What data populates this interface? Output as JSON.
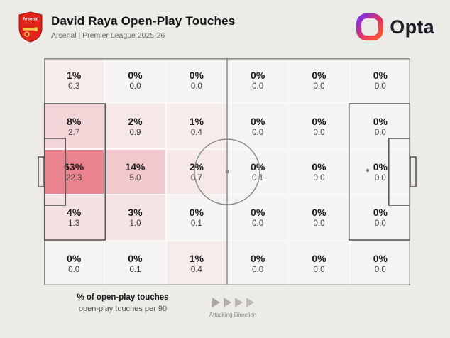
{
  "header": {
    "title": "David Raya Open-Play Touches",
    "subtitle": "Arsenal | Premier League 2025-26",
    "badge_text": "Arsenal",
    "brand": "Opta"
  },
  "chart_data": {
    "type": "heatmap",
    "title": "David Raya Open-Play Touches",
    "subtitle": "Arsenal | Premier League 2025-26",
    "rows": 5,
    "cols": 6,
    "orientation": "attacking left-to-right",
    "pct": [
      [
        1,
        0,
        0,
        0,
        0,
        0
      ],
      [
        8,
        2,
        1,
        0,
        0,
        0
      ],
      [
        63,
        14,
        2,
        0,
        0,
        0
      ],
      [
        4,
        3,
        0,
        0,
        0,
        0
      ],
      [
        0,
        0,
        1,
        0,
        0,
        0
      ]
    ],
    "per90": [
      [
        0.3,
        0.0,
        0.0,
        0.0,
        0.0,
        0.0
      ],
      [
        2.7,
        0.9,
        0.4,
        0.0,
        0.0,
        0.0
      ],
      [
        22.3,
        5.0,
        0.7,
        0.1,
        0.0,
        0.0
      ],
      [
        1.3,
        1.0,
        0.1,
        0.0,
        0.0,
        0.0
      ],
      [
        0.0,
        0.1,
        0.4,
        0.0,
        0.0,
        0.0
      ]
    ],
    "value_labels": {
      "primary": "% of open-play touches",
      "secondary": "open-play touches per 90"
    },
    "heat_scale": {
      "min_color": "#f6f4f2",
      "max_color": "#e9838d",
      "max_pct": 63,
      "gamma": 0.65
    }
  },
  "legend": {
    "primary": "% of open-play touches",
    "secondary": "open-play touches per 90",
    "direction_label": "Attacking Direction"
  },
  "colors": {
    "background": "#edebe8",
    "pitch_line": "#8d8b88",
    "box_line": "#5a5855",
    "arsenal_red": "#e2231a",
    "title_text": "#141414",
    "subtitle_text": "#6f6d6a"
  }
}
